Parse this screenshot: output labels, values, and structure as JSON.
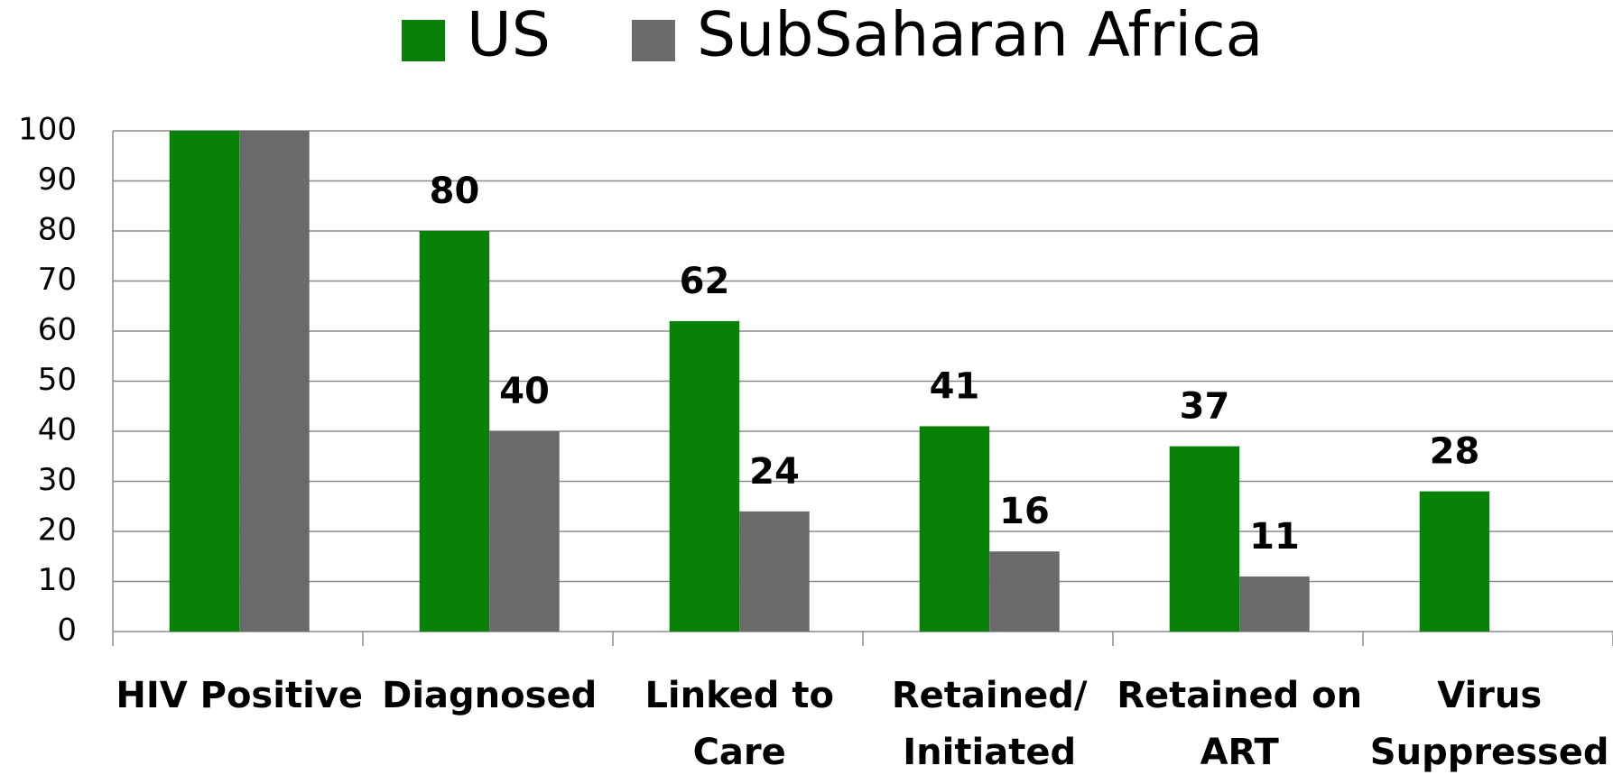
{
  "chart_data": {
    "type": "bar",
    "categories": [
      "HIV Positive",
      "Diagnosed",
      "Linked to\nCare",
      "Retained/\nInitiated",
      "Retained on\nART",
      "Virus\nSuppressed"
    ],
    "series": [
      {
        "name": "US",
        "color": "#078207",
        "values": [
          100,
          80,
          62,
          41,
          37,
          28
        ],
        "value_labels": [
          null,
          "80",
          "62",
          "41",
          "37",
          "28"
        ]
      },
      {
        "name": "SubSaharan Africa",
        "color": "#6a6a6a",
        "values": [
          100,
          40,
          24,
          16,
          11,
          null
        ],
        "value_labels": [
          null,
          "40",
          "24",
          "16",
          "11",
          null
        ]
      }
    ],
    "ylim": [
      0,
      100
    ],
    "yticks": [
      0,
      10,
      20,
      30,
      40,
      50,
      60,
      70,
      80,
      90,
      100
    ],
    "grid": true,
    "legend": "top"
  }
}
